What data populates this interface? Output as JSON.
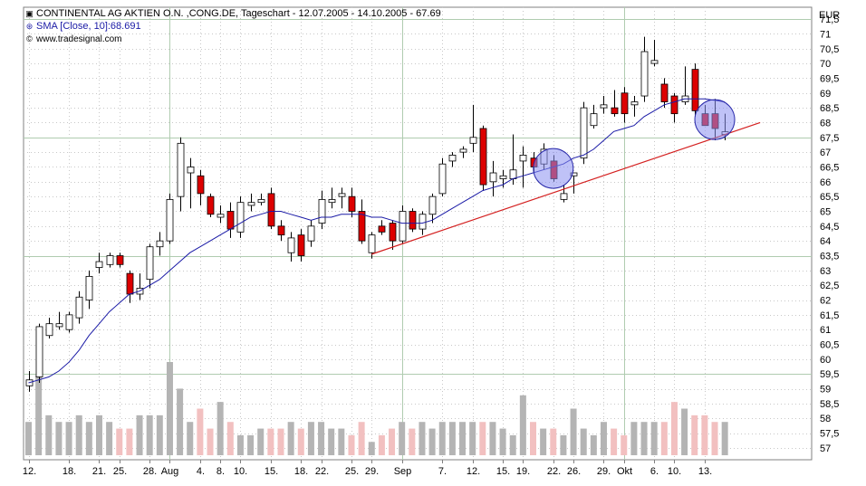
{
  "header": {
    "title": "CONTINENTAL AG AKTIEN O.N. ,CONG.DE, Tageschart - 12.07.2005 - 14.10.2005 - 67.69",
    "title_icon": "chart-icon",
    "sma_label": "SMA [Close, 10]:68.691",
    "sma_icon": "sma-line-icon",
    "source": "www.tradesignal.com",
    "source_icon": "copyright-icon",
    "currency": "EUR"
  },
  "chart_data": {
    "type": "candlestick",
    "title": "CONTINENTAL AG AKTIEN O.N. ,CONG.DE, Tageschart - 12.07.2005 - 14.10.2005 - 67.69",
    "ylabel": "EUR",
    "ylim": [
      56.6,
      71.9
    ],
    "y_ticks": [
      57,
      57.5,
      58,
      58.5,
      59,
      59.5,
      60,
      60.5,
      61,
      61.5,
      62,
      62.5,
      63,
      63.5,
      64,
      64.5,
      65,
      65.5,
      66,
      66.5,
      67,
      67.5,
      68,
      68.5,
      69,
      69.5,
      70,
      70.5,
      71,
      71.5
    ],
    "y_tick_labels": [
      "57",
      "57,5",
      "58",
      "58,5",
      "59",
      "59,5",
      "60",
      "60,5",
      "61",
      "61,5",
      "62",
      "62,5",
      "63",
      "63,5",
      "64",
      "64,5",
      "65",
      "65,5",
      "66",
      "66,5",
      "67",
      "67,5",
      "68",
      "68,5",
      "69",
      "69,5",
      "70",
      "70,5",
      "71",
      "71,5"
    ],
    "x_tick_labels": [
      {
        "label": "12.",
        "index": 0
      },
      {
        "label": "18.",
        "index": 4
      },
      {
        "label": "21.",
        "index": 7
      },
      {
        "label": "25.",
        "index": 9
      },
      {
        "label": "28.",
        "index": 12
      },
      {
        "label": "Aug",
        "index": 14
      },
      {
        "label": "4.",
        "index": 17
      },
      {
        "label": "8.",
        "index": 19
      },
      {
        "label": "10.",
        "index": 21
      },
      {
        "label": "15.",
        "index": 24
      },
      {
        "label": "18.",
        "index": 27
      },
      {
        "label": "22.",
        "index": 29
      },
      {
        "label": "25.",
        "index": 32
      },
      {
        "label": "29.",
        "index": 34
      },
      {
        "label": "Sep",
        "index": 37
      },
      {
        "label": "7.",
        "index": 41
      },
      {
        "label": "12.",
        "index": 44
      },
      {
        "label": "15.",
        "index": 47
      },
      {
        "label": "19.",
        "index": 49
      },
      {
        "label": "22.",
        "index": 52
      },
      {
        "label": "26.",
        "index": 54
      },
      {
        "label": "29.",
        "index": 57
      },
      {
        "label": "Okt",
        "index": 59
      },
      {
        "label": "6.",
        "index": 62
      },
      {
        "label": "10.",
        "index": 64
      },
      {
        "label": "13.",
        "index": 67
      }
    ],
    "vertical_grid_indices": [
      14,
      37,
      59
    ],
    "horizontal_grid_values": [
      59.5,
      63.5,
      67.5,
      71.5
    ],
    "candles": [
      {
        "o": 59.1,
        "h": 59.6,
        "l": 58.9,
        "c": 59.3
      },
      {
        "o": 59.4,
        "h": 61.2,
        "l": 59.2,
        "c": 61.1
      },
      {
        "o": 60.8,
        "h": 61.4,
        "l": 60.7,
        "c": 61.2
      },
      {
        "o": 61.1,
        "h": 61.6,
        "l": 61.0,
        "c": 61.2
      },
      {
        "o": 61.0,
        "h": 61.6,
        "l": 60.9,
        "c": 61.5
      },
      {
        "o": 61.4,
        "h": 62.3,
        "l": 61.2,
        "c": 62.1
      },
      {
        "o": 62.0,
        "h": 63.0,
        "l": 61.7,
        "c": 62.8
      },
      {
        "o": 63.1,
        "h": 63.6,
        "l": 62.9,
        "c": 63.3
      },
      {
        "o": 63.2,
        "h": 63.6,
        "l": 63.1,
        "c": 63.5
      },
      {
        "o": 63.5,
        "h": 63.6,
        "l": 63.1,
        "c": 63.2
      },
      {
        "o": 62.9,
        "h": 63.0,
        "l": 61.9,
        "c": 62.2
      },
      {
        "o": 62.2,
        "h": 62.9,
        "l": 62.0,
        "c": 62.4
      },
      {
        "o": 62.7,
        "h": 63.9,
        "l": 62.4,
        "c": 63.8
      },
      {
        "o": 63.8,
        "h": 64.3,
        "l": 63.5,
        "c": 64.0
      },
      {
        "o": 64.0,
        "h": 65.6,
        "l": 63.9,
        "c": 65.4
      },
      {
        "o": 65.5,
        "h": 67.5,
        "l": 65.0,
        "c": 67.3
      },
      {
        "o": 66.3,
        "h": 66.8,
        "l": 65.1,
        "c": 66.5
      },
      {
        "o": 66.2,
        "h": 66.4,
        "l": 65.2,
        "c": 65.6
      },
      {
        "o": 65.5,
        "h": 65.6,
        "l": 64.8,
        "c": 64.9
      },
      {
        "o": 64.8,
        "h": 65.2,
        "l": 64.6,
        "c": 64.9
      },
      {
        "o": 65.0,
        "h": 65.3,
        "l": 64.1,
        "c": 64.4
      },
      {
        "o": 64.3,
        "h": 65.5,
        "l": 64.1,
        "c": 65.3
      },
      {
        "o": 65.2,
        "h": 65.6,
        "l": 65.0,
        "c": 65.3
      },
      {
        "o": 65.3,
        "h": 65.6,
        "l": 65.2,
        "c": 65.4
      },
      {
        "o": 65.6,
        "h": 65.8,
        "l": 64.4,
        "c": 64.5
      },
      {
        "o": 64.5,
        "h": 64.7,
        "l": 64.0,
        "c": 64.2
      },
      {
        "o": 63.6,
        "h": 64.3,
        "l": 63.3,
        "c": 64.1
      },
      {
        "o": 64.2,
        "h": 64.4,
        "l": 63.3,
        "c": 63.5
      },
      {
        "o": 64.0,
        "h": 64.7,
        "l": 63.8,
        "c": 64.5
      },
      {
        "o": 64.6,
        "h": 65.7,
        "l": 64.4,
        "c": 65.4
      },
      {
        "o": 65.3,
        "h": 65.8,
        "l": 65.1,
        "c": 65.4
      },
      {
        "o": 65.5,
        "h": 65.8,
        "l": 65.1,
        "c": 65.6
      },
      {
        "o": 65.5,
        "h": 65.8,
        "l": 64.8,
        "c": 65.0
      },
      {
        "o": 65.0,
        "h": 65.4,
        "l": 63.9,
        "c": 64.0
      },
      {
        "o": 63.6,
        "h": 64.3,
        "l": 63.4,
        "c": 64.2
      },
      {
        "o": 64.5,
        "h": 64.7,
        "l": 64.2,
        "c": 64.3
      },
      {
        "o": 64.6,
        "h": 64.7,
        "l": 63.7,
        "c": 64.0
      },
      {
        "o": 64.0,
        "h": 65.2,
        "l": 63.9,
        "c": 65.0
      },
      {
        "o": 65.0,
        "h": 65.1,
        "l": 64.3,
        "c": 64.4
      },
      {
        "o": 64.4,
        "h": 65.0,
        "l": 64.2,
        "c": 64.9
      },
      {
        "o": 64.9,
        "h": 65.6,
        "l": 64.6,
        "c": 65.5
      },
      {
        "o": 65.6,
        "h": 66.8,
        "l": 65.5,
        "c": 66.6
      },
      {
        "o": 66.7,
        "h": 67.0,
        "l": 66.5,
        "c": 66.9
      },
      {
        "o": 67.0,
        "h": 67.2,
        "l": 66.8,
        "c": 67.1
      },
      {
        "o": 67.3,
        "h": 68.6,
        "l": 67.0,
        "c": 67.5
      },
      {
        "o": 67.8,
        "h": 67.9,
        "l": 65.7,
        "c": 65.9
      },
      {
        "o": 66.0,
        "h": 66.7,
        "l": 65.5,
        "c": 66.3
      },
      {
        "o": 66.1,
        "h": 66.4,
        "l": 65.8,
        "c": 66.2
      },
      {
        "o": 66.1,
        "h": 67.6,
        "l": 65.9,
        "c": 66.4
      },
      {
        "o": 66.7,
        "h": 67.2,
        "l": 65.8,
        "c": 66.9
      },
      {
        "o": 66.8,
        "h": 67.0,
        "l": 66.3,
        "c": 66.5
      },
      {
        "o": 66.6,
        "h": 67.3,
        "l": 66.4,
        "c": 67.1
      },
      {
        "o": 66.7,
        "h": 66.9,
        "l": 66.0,
        "c": 66.1
      },
      {
        "o": 65.4,
        "h": 65.9,
        "l": 65.3,
        "c": 65.6
      },
      {
        "o": 66.2,
        "h": 66.3,
        "l": 65.6,
        "c": 66.3
      },
      {
        "o": 66.8,
        "h": 68.7,
        "l": 66.6,
        "c": 68.5
      },
      {
        "o": 67.9,
        "h": 68.6,
        "l": 67.8,
        "c": 68.3
      },
      {
        "o": 68.5,
        "h": 68.9,
        "l": 68.3,
        "c": 68.6
      },
      {
        "o": 68.5,
        "h": 69.1,
        "l": 68.2,
        "c": 68.3
      },
      {
        "o": 69.0,
        "h": 69.2,
        "l": 68.0,
        "c": 68.3
      },
      {
        "o": 68.6,
        "h": 68.9,
        "l": 68.2,
        "c": 68.7
      },
      {
        "o": 68.9,
        "h": 70.9,
        "l": 68.7,
        "c": 70.4
      },
      {
        "o": 70.0,
        "h": 70.8,
        "l": 69.9,
        "c": 70.1
      },
      {
        "o": 69.3,
        "h": 69.5,
        "l": 68.5,
        "c": 68.7
      },
      {
        "o": 68.9,
        "h": 69.0,
        "l": 68.0,
        "c": 68.3
      },
      {
        "o": 68.7,
        "h": 69.9,
        "l": 68.6,
        "c": 68.9
      },
      {
        "o": 69.8,
        "h": 70.0,
        "l": 68.2,
        "c": 68.4
      },
      {
        "o": 68.3,
        "h": 68.6,
        "l": 67.9,
        "c": 67.9
      },
      {
        "o": 68.3,
        "h": 68.8,
        "l": 67.4,
        "c": 67.8
      },
      {
        "o": 67.6,
        "h": 68.3,
        "l": 67.4,
        "c": 67.69
      }
    ],
    "series": [
      {
        "name": "SMA [Close, 10]",
        "values": [
          59.2,
          59.3,
          59.4,
          59.6,
          59.9,
          60.3,
          60.8,
          61.2,
          61.6,
          61.9,
          62.2,
          62.3,
          62.5,
          62.7,
          63.0,
          63.3,
          63.6,
          63.8,
          64.0,
          64.2,
          64.4,
          64.6,
          64.8,
          64.9,
          65.0,
          65.0,
          64.9,
          64.8,
          64.7,
          64.8,
          64.8,
          64.9,
          64.9,
          64.9,
          64.8,
          64.8,
          64.7,
          64.6,
          64.6,
          64.6,
          64.7,
          64.9,
          65.1,
          65.3,
          65.5,
          65.7,
          65.8,
          65.9,
          66.1,
          66.2,
          66.3,
          66.4,
          66.5,
          66.6,
          66.8,
          66.9,
          67.1,
          67.4,
          67.7,
          67.8,
          67.9,
          68.2,
          68.4,
          68.6,
          68.7,
          68.8,
          68.8,
          68.8,
          68.75,
          68.7
        ]
      }
    ],
    "volume": [
      5,
      12,
      6,
      5,
      5,
      6,
      5,
      6,
      5,
      4,
      4,
      6,
      6,
      6,
      14,
      10,
      5,
      7,
      4,
      8,
      5,
      3,
      3,
      4,
      4,
      4,
      5,
      4,
      5,
      5,
      4,
      4,
      3,
      5,
      2,
      3,
      4,
      5,
      4,
      5,
      4,
      5,
      5,
      5,
      5,
      5,
      5,
      4,
      3,
      9,
      5,
      4,
      4,
      3,
      7,
      4,
      3,
      5,
      4,
      3,
      5,
      5,
      5,
      5,
      8,
      7,
      6,
      6,
      5,
      5
    ],
    "trendline": {
      "start_index": 34,
      "start_value": 63.55,
      "end_index": 72.5,
      "end_value": 68.0
    },
    "highlight_circle_indices": [
      52,
      68
    ],
    "colors": {
      "down_body": "#dd0000",
      "up_body": "#ffffff",
      "sma": "#1a1aa6",
      "trendline": "#d42020",
      "volume_up": "#b4b4b4",
      "volume_down": "#f2c0c0",
      "highlight_fill": "#8a8ff0",
      "highlight_stroke": "#2a2aaa",
      "grid": "#b0ccb0"
    }
  }
}
